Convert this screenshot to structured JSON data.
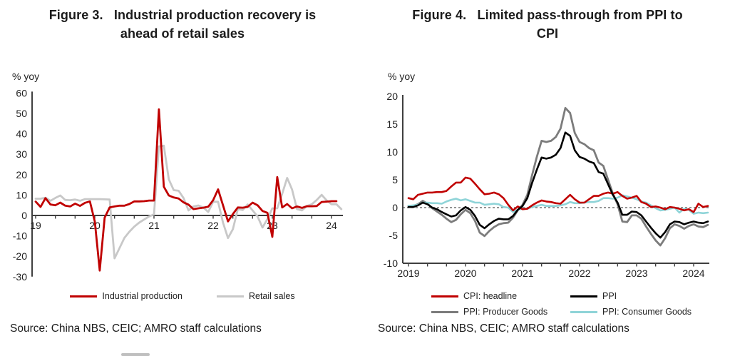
{
  "figures": [
    {
      "title_lines": [
        "Figure 3.   Industrial production recovery is",
        "ahead of retail sales"
      ],
      "unit_label": "% yoy",
      "source": "Source: China NBS, CEIC; AMRO staff calculations",
      "legend": [
        {
          "name": "Industrial production",
          "color": "#C00000"
        },
        {
          "name": "Retail sales",
          "color": "#C8C8C8"
        }
      ]
    },
    {
      "title_lines": [
        "Figure 4.   Limited pass-through from PPI to",
        "CPI"
      ],
      "unit_label": "% yoy",
      "source": "Source: China NBS, CEIC; AMRO staff calculations",
      "legend": [
        {
          "name": "CPI: headline",
          "color": "#C00000"
        },
        {
          "name": "PPI",
          "color": "#000000"
        },
        {
          "name": "PPI: Producer Goods",
          "color": "#7C7C7C"
        },
        {
          "name": "PPI: Consumer Goods",
          "color": "#8FD4D8"
        }
      ]
    }
  ],
  "chart_data": [
    {
      "type": "line",
      "title": "Figure 3. Industrial production recovery is ahead of retail sales",
      "ylabel": "% yoy",
      "xlabel": "",
      "ylim": [
        -30,
        60
      ],
      "yticks": [
        60,
        50,
        40,
        30,
        20,
        10,
        0,
        -10,
        -20,
        -30
      ],
      "x_axis_at": 0,
      "dashed_zero": false,
      "grid": false,
      "legend_position": "bottom",
      "axis_color": "#3F3F3F",
      "xticks": [
        {
          "value": 2019,
          "label": "19"
        },
        {
          "value": 2020,
          "label": "20"
        },
        {
          "value": 2021,
          "label": "21"
        },
        {
          "value": 2022,
          "label": "22"
        },
        {
          "value": 2023,
          "label": "23"
        },
        {
          "value": 2024,
          "label": "24"
        }
      ],
      "series": [
        {
          "name": "Industrial production",
          "color": "#C00000",
          "width": 2.8,
          "z": 2,
          "start": 2019.0,
          "values": [
            6.8,
            4.2,
            8.5,
            5.4,
            5.0,
            6.3,
            4.8,
            4.4,
            5.8,
            4.7,
            6.2,
            6.9,
            -3.0,
            -27.0,
            -1.1,
            3.9,
            4.4,
            4.8,
            4.8,
            5.6,
            6.9,
            6.9,
            7.0,
            7.3,
            7.3,
            52.0,
            14.1,
            9.8,
            8.8,
            8.3,
            6.4,
            5.3,
            3.1,
            3.5,
            3.8,
            4.3,
            7.5,
            12.8,
            5.0,
            -2.9,
            0.7,
            3.9,
            3.8,
            4.2,
            6.3,
            5.0,
            2.2,
            1.3,
            -10.5,
            18.8,
            3.9,
            5.6,
            3.5,
            4.4,
            3.7,
            4.5,
            4.5,
            4.6,
            6.6,
            6.8,
            7.0,
            7.0
          ]
        },
        {
          "name": "Retail sales",
          "color": "#C8C8C8",
          "width": 2.8,
          "z": 1,
          "start": 2019.0,
          "values": [
            8.2,
            8.2,
            8.7,
            7.2,
            8.6,
            9.8,
            7.6,
            7.5,
            7.8,
            7.2,
            8.0,
            8.0,
            8.0,
            8.0,
            7.9,
            7.8,
            -21.0,
            -16.0,
            -11.0,
            -8.0,
            -5.5,
            -3.5,
            -2.0,
            -0.5,
            0.5,
            33.8,
            34.2,
            17.7,
            12.4,
            12.1,
            8.5,
            2.5,
            4.4,
            4.9,
            3.9,
            1.7,
            6.7,
            6.7,
            -3.5,
            -11.1,
            -6.7,
            3.1,
            2.7,
            5.4,
            2.5,
            -0.5,
            -5.9,
            -1.8,
            3.5,
            3.5,
            10.6,
            18.4,
            12.7,
            3.1,
            2.5,
            4.6,
            5.5,
            7.6,
            10.1,
            7.4,
            5.5,
            5.5,
            3.1
          ]
        }
      ]
    },
    {
      "type": "line",
      "title": "Figure 4. Limited pass-through from PPI to CPI",
      "ylabel": "% yoy",
      "xlabel": "",
      "ylim": [
        -10,
        20
      ],
      "yticks": [
        20,
        15,
        10,
        5,
        0,
        -5,
        -10
      ],
      "x_axis_at": -10,
      "dashed_zero": true,
      "grid": false,
      "legend_position": "bottom",
      "axis_color": "#3F3F3F",
      "xticks": [
        {
          "value": 2019,
          "label": "2019"
        },
        {
          "value": 2020,
          "label": "2020"
        },
        {
          "value": 2021,
          "label": "2021"
        },
        {
          "value": 2022,
          "label": "2022"
        },
        {
          "value": 2023,
          "label": "2023"
        },
        {
          "value": 2024,
          "label": "2024"
        }
      ],
      "series": [
        {
          "name": "CPI: headline",
          "color": "#C00000",
          "width": 2.6,
          "z": 3,
          "start": 2019.0,
          "values": [
            1.7,
            1.5,
            2.3,
            2.5,
            2.7,
            2.7,
            2.8,
            2.8,
            3.0,
            3.8,
            4.5,
            4.5,
            5.4,
            5.2,
            4.3,
            3.3,
            2.4,
            2.5,
            2.7,
            2.4,
            1.7,
            0.5,
            -0.5,
            0.2,
            -0.3,
            -0.2,
            0.4,
            0.9,
            1.3,
            1.1,
            1.0,
            0.8,
            0.7,
            1.5,
            2.3,
            1.5,
            0.9,
            0.9,
            1.5,
            2.1,
            2.1,
            2.5,
            2.7,
            2.5,
            2.8,
            2.1,
            1.6,
            1.8,
            2.1,
            1.0,
            0.7,
            0.1,
            0.2,
            0.0,
            -0.3,
            0.1,
            0.0,
            -0.2,
            -0.5,
            -0.3,
            -0.8,
            0.7,
            0.1,
            0.3
          ]
        },
        {
          "name": "PPI",
          "color": "#000000",
          "width": 2.6,
          "z": 4,
          "start": 2019.0,
          "values": [
            0.1,
            0.1,
            0.4,
            0.9,
            0.6,
            0.0,
            -0.3,
            -0.8,
            -1.2,
            -1.6,
            -1.4,
            -0.5,
            0.1,
            -0.4,
            -1.5,
            -3.1,
            -3.7,
            -3.0,
            -2.4,
            -2.0,
            -2.1,
            -2.1,
            -1.5,
            -0.4,
            0.3,
            1.7,
            4.4,
            6.8,
            9.0,
            8.8,
            9.0,
            9.5,
            10.7,
            13.5,
            12.9,
            10.3,
            9.1,
            8.8,
            8.3,
            8.0,
            6.4,
            6.1,
            4.2,
            2.3,
            0.9,
            -1.3,
            -1.3,
            -0.7,
            -0.8,
            -1.4,
            -2.5,
            -3.6,
            -4.6,
            -5.4,
            -4.4,
            -3.0,
            -2.5,
            -2.6,
            -3.0,
            -2.7,
            -2.5,
            -2.7,
            -2.8,
            -2.5
          ]
        },
        {
          "name": "PPI: Producer Goods",
          "color": "#7C7C7C",
          "width": 2.8,
          "z": 1,
          "start": 2019.0,
          "values": [
            0.3,
            0.3,
            0.6,
            1.2,
            0.7,
            -0.1,
            -0.7,
            -1.3,
            -2.0,
            -2.6,
            -2.2,
            -1.2,
            -0.4,
            -1.0,
            -2.4,
            -4.5,
            -5.1,
            -4.2,
            -3.5,
            -3.0,
            -2.8,
            -2.7,
            -1.8,
            -0.5,
            0.5,
            2.3,
            5.8,
            9.1,
            12.0,
            11.8,
            12.0,
            12.7,
            14.2,
            17.9,
            17.0,
            13.4,
            11.8,
            11.4,
            10.7,
            10.3,
            8.1,
            7.5,
            5.0,
            2.5,
            0.6,
            -2.5,
            -2.6,
            -1.4,
            -1.4,
            -2.0,
            -3.4,
            -4.7,
            -5.9,
            -6.8,
            -5.5,
            -3.7,
            -3.0,
            -3.3,
            -3.8,
            -3.3,
            -3.0,
            -3.4,
            -3.5,
            -3.1
          ]
        },
        {
          "name": "PPI: Consumer Goods",
          "color": "#8FD4D8",
          "width": 2.6,
          "z": 2,
          "start": 2019.0,
          "values": [
            0.3,
            0.4,
            0.5,
            0.9,
            0.9,
            0.8,
            0.8,
            0.7,
            1.1,
            1.4,
            1.6,
            1.3,
            1.5,
            1.2,
            0.9,
            0.9,
            0.5,
            0.6,
            0.7,
            0.6,
            0.1,
            0.0,
            -0.8,
            -0.4,
            -0.2,
            -0.2,
            0.1,
            0.3,
            0.5,
            0.3,
            0.3,
            0.3,
            0.4,
            0.6,
            1.0,
            0.8,
            0.8,
            0.9,
            1.0,
            1.0,
            1.2,
            1.7,
            1.7,
            1.6,
            1.8,
            2.2,
            2.0,
            1.8,
            1.5,
            1.1,
            0.9,
            0.4,
            -0.1,
            -0.5,
            -0.4,
            -0.2,
            0.0,
            -0.9,
            -0.2,
            -0.4,
            -1.1,
            -0.9,
            -1.0,
            -0.9
          ]
        }
      ]
    }
  ]
}
